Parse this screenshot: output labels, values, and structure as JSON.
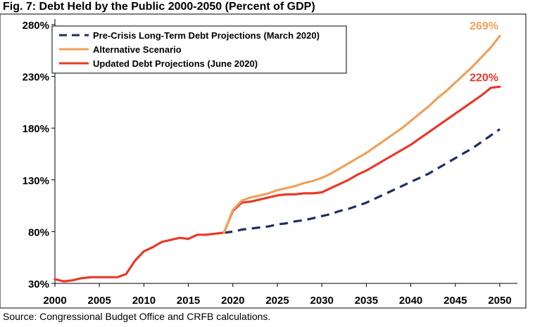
{
  "figure": {
    "title": "Fig. 7: Debt Held by the Public 2000-2050 (Percent of GDP)",
    "source": "Source: Congressional Budget Office and CRFB calculations."
  },
  "chart_data": {
    "type": "line",
    "title": "Fig. 7: Debt Held by the Public 2000-2050 (Percent of GDP)",
    "xlabel": "",
    "ylabel": "",
    "xlim": [
      2000,
      2050
    ],
    "ylim": [
      30,
      280
    ],
    "x_ticks": [
      2000,
      2005,
      2010,
      2015,
      2020,
      2025,
      2030,
      2035,
      2040,
      2045,
      2050
    ],
    "y_ticks": [
      30,
      80,
      130,
      180,
      230,
      280
    ],
    "y_tick_labels": [
      "30%",
      "80%",
      "130%",
      "180%",
      "230%",
      "280%"
    ],
    "grid": false,
    "legend_position": "top-left",
    "series": [
      {
        "name": "Pre-Crisis Long-Term Debt Projections (March 2020)",
        "style": "dashed",
        "color": "#1f2f5e",
        "x": [
          2019,
          2020,
          2021,
          2022,
          2023,
          2024,
          2025,
          2026,
          2027,
          2028,
          2029,
          2030,
          2031,
          2032,
          2033,
          2034,
          2035,
          2036,
          2037,
          2038,
          2039,
          2040,
          2041,
          2042,
          2043,
          2044,
          2045,
          2046,
          2047,
          2048,
          2049,
          2050
        ],
        "values": [
          79,
          80,
          82,
          83,
          84,
          85,
          87,
          88,
          90,
          91,
          93,
          95,
          97,
          100,
          102,
          105,
          108,
          112,
          116,
          120,
          124,
          128,
          132,
          136,
          141,
          146,
          151,
          156,
          161,
          167,
          173,
          179
        ]
      },
      {
        "name": "Alternative Scenario",
        "style": "solid",
        "color": "#f0a05a",
        "x": [
          2019,
          2020,
          2021,
          2022,
          2023,
          2024,
          2025,
          2026,
          2027,
          2028,
          2029,
          2030,
          2031,
          2032,
          2033,
          2034,
          2035,
          2036,
          2037,
          2038,
          2039,
          2040,
          2041,
          2042,
          2043,
          2044,
          2045,
          2046,
          2047,
          2048,
          2049,
          2050
        ],
        "values": [
          79,
          101,
          110,
          113,
          115,
          117,
          120,
          122,
          124,
          127,
          129,
          132,
          136,
          141,
          146,
          151,
          156,
          162,
          168,
          174,
          180,
          187,
          194,
          201,
          209,
          216,
          224,
          232,
          240,
          249,
          258,
          269
        ]
      },
      {
        "name": "Updated Debt Projections (June 2020)",
        "style": "solid",
        "color": "#e8392a",
        "x": [
          2000,
          2001,
          2002,
          2003,
          2004,
          2005,
          2006,
          2007,
          2008,
          2009,
          2010,
          2011,
          2012,
          2013,
          2014,
          2015,
          2016,
          2017,
          2018,
          2019,
          2020,
          2021,
          2022,
          2023,
          2024,
          2025,
          2026,
          2027,
          2028,
          2029,
          2030,
          2031,
          2032,
          2033,
          2034,
          2035,
          2036,
          2037,
          2038,
          2039,
          2040,
          2041,
          2042,
          2043,
          2044,
          2045,
          2046,
          2047,
          2048,
          2049,
          2050
        ],
        "values": [
          34,
          32,
          33,
          35,
          36,
          36,
          36,
          36,
          39,
          52,
          61,
          65,
          70,
          72,
          74,
          73,
          77,
          77,
          78,
          79,
          100,
          108,
          109,
          111,
          113,
          115,
          116,
          116,
          117,
          117,
          118,
          122,
          126,
          130,
          135,
          139,
          144,
          149,
          154,
          159,
          164,
          170,
          176,
          182,
          188,
          194,
          200,
          206,
          212,
          219,
          220
        ]
      }
    ],
    "annotations": [
      {
        "text": "269%",
        "x": 2050,
        "y": 269,
        "color": "#f0a05a"
      },
      {
        "text": "220%",
        "x": 2050,
        "y": 220,
        "color": "#e8392a"
      }
    ]
  }
}
